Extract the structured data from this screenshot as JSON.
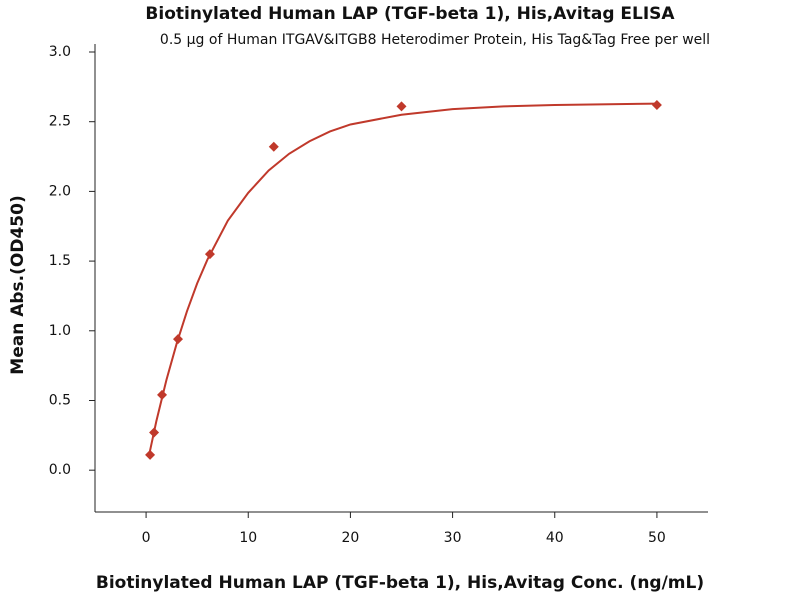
{
  "chart_data": {
    "type": "scatter",
    "title": "Biotinylated Human LAP (TGF-beta 1), His,Avitag ELISA",
    "subtitle": "0.5 µg of Human ITGAV&ITGB8 Heterodimer Protein, His Tag&Tag Free per well",
    "x_label": "Biotinylated Human LAP (TGF-beta 1), His,Avitag Conc. (ng/mL)",
    "y_label": "Mean Abs.(OD450)",
    "points": {
      "color": "#c0392b",
      "x": [
        0.39,
        0.78,
        1.56,
        3.125,
        6.25,
        12.5,
        25,
        50
      ],
      "values": [
        0.11,
        0.27,
        0.54,
        0.94,
        1.55,
        2.32,
        2.61,
        2.62
      ]
    },
    "curve": {
      "color": "#c0392b",
      "x": [
        0.3,
        1,
        2,
        3,
        4,
        5,
        6,
        8,
        10,
        12,
        14,
        16,
        18,
        20,
        25,
        30,
        35,
        40,
        50
      ],
      "values": [
        0.11,
        0.35,
        0.65,
        0.91,
        1.14,
        1.34,
        1.51,
        1.79,
        1.99,
        2.15,
        2.27,
        2.36,
        2.43,
        2.48,
        2.55,
        2.59,
        2.61,
        2.62,
        2.63
      ]
    },
    "xlim": [
      -5,
      55
    ],
    "xticks": [
      0,
      10,
      20,
      30,
      40,
      50
    ],
    "ylim": [
      -0.3,
      3.0
    ],
    "yticks": [
      {
        "value": 0,
        "label": "0.0"
      },
      {
        "value": 0.5,
        "label": "0.5"
      },
      {
        "value": 1,
        "label": "1.0"
      },
      {
        "value": 1.5,
        "label": "1.5"
      },
      {
        "value": 2,
        "label": "2.0"
      },
      {
        "value": 2.5,
        "label": "2.5"
      },
      {
        "value": 3,
        "label": "3.0"
      }
    ]
  }
}
